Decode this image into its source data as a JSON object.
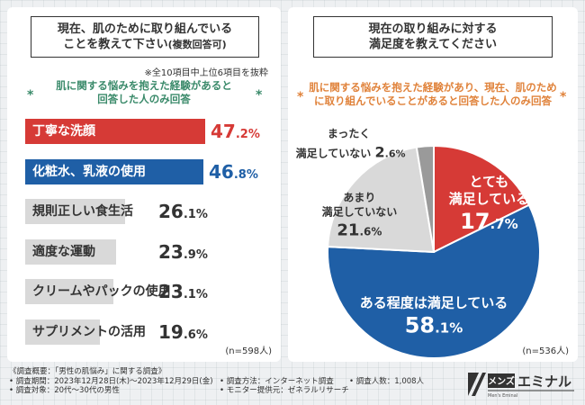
{
  "left": {
    "title_line1": "現在、肌のために取り組んでいる",
    "title_line2": "ことを教えて下さい",
    "title_suffix": "(複数回答可)",
    "note": "※全10項目中上位6項目を抜粋",
    "sub_line1": "肌に関する悩みを抱えた経験があると",
    "sub_line2": "回答した人のみ回答",
    "star": "*",
    "n_label": "(n=598人)"
  },
  "right": {
    "title_line1": "現在の取り組みに対する",
    "title_line2": "満足度を教えてください",
    "sub_line1": "肌に関する悩みを抱えた経験があり、現在、肌のため",
    "sub_line2": "に取り組んでいることがあると回答した人のみ回答",
    "n_label": "(n=536人)"
  },
  "chart_data": [
    {
      "type": "bar",
      "orientation": "horizontal",
      "title": "現在、肌のために取り組んでいることを教えて下さい(複数回答可)",
      "unit": "%",
      "xlim": [
        0,
        47.2
      ],
      "categories": [
        "丁寧な洗顔",
        "化粧水、乳液の使用",
        "規則正しい食生活",
        "適度な運動",
        "クリームやパックの使用",
        "サプリメントの活用"
      ],
      "values": [
        47.2,
        46.8,
        26.1,
        23.9,
        23.1,
        19.6
      ],
      "value_labels": [
        {
          "int": "47",
          "dec": ".2%"
        },
        {
          "int": "46",
          "dec": ".8%"
        },
        {
          "int": "26",
          "dec": ".1%"
        },
        {
          "int": "23",
          "dec": ".9%"
        },
        {
          "int": "23",
          "dec": ".1%"
        },
        {
          "int": "19",
          "dec": ".6%"
        }
      ],
      "colors": [
        "#d63a36",
        "#1f5fa6",
        "#d9d9d9",
        "#d9d9d9",
        "#d9d9d9",
        "#d9d9d9"
      ],
      "label_colors": [
        "#ffffff",
        "#ffffff",
        "#333333",
        "#333333",
        "#333333",
        "#333333"
      ],
      "value_colors": [
        "#d63a36",
        "#1f5fa6",
        "#333333",
        "#333333",
        "#333333",
        "#333333"
      ]
    },
    {
      "type": "pie",
      "title": "現在の取り組みに対する満足度を教えてください",
      "unit": "%",
      "labels": [
        "とても満足している",
        "ある程度は満足している",
        "あまり満足していない",
        "まったく満足していない"
      ],
      "values": [
        17.7,
        58.1,
        21.6,
        2.6
      ],
      "colors": [
        "#d63a36",
        "#1f5fa6",
        "#d9d9d9",
        "#9a9a9a"
      ],
      "slice_labels": [
        {
          "line1": "とても",
          "line2": "満足している",
          "int": "17",
          "dec": ".7%",
          "color": "#ffffff"
        },
        {
          "line1": "ある程度は満足している",
          "line2": "",
          "int": "58",
          "dec": ".1%",
          "color": "#ffffff"
        },
        {
          "line1": "あまり",
          "line2": "満足していない",
          "int": "21",
          "dec": ".6%",
          "color": "#333333"
        },
        {
          "line1": "まったく",
          "line2": "満足していない",
          "int": "2",
          "dec": ".6%",
          "color": "#333333"
        }
      ]
    }
  ],
  "footer": {
    "line1": "《調査概要：「男性の肌悩み」に関する調査》",
    "period": "• 調査期間：2023年12月28日(木)～2023年12月29日(金)",
    "target": "• 調査対象：20代～30代の男性",
    "method": "• 調査方法：インターネット調査",
    "provider": "• モニター提供元：ゼネラルリサーチ",
    "count": "• 調査人数：1,008人"
  },
  "logo": {
    "box_text": "メンズ",
    "name": "エミナル",
    "sub": "Men's Eminal"
  }
}
